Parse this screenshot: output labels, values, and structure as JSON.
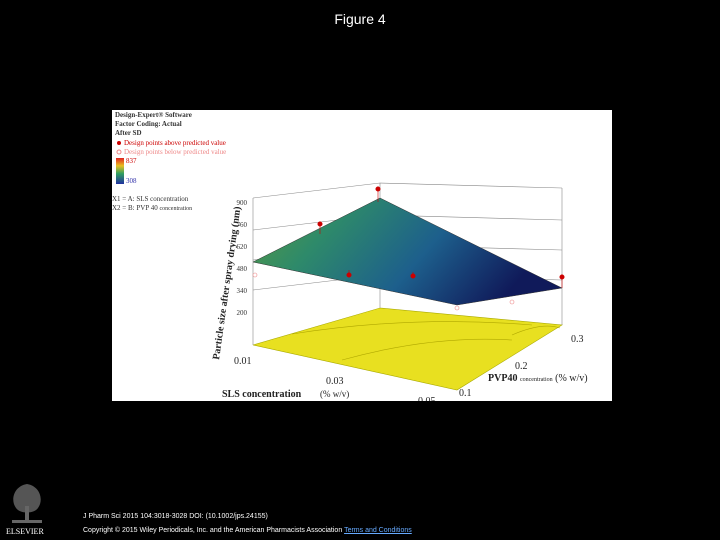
{
  "header": {
    "title": "Figure 4"
  },
  "figure": {
    "legend": {
      "software": "Design-Expert® Software",
      "coding": "Factor Coding: Actual",
      "response": "After SD",
      "above": "Design points above predicted value",
      "below": "Design points below predicted value",
      "max": "837",
      "min": "308",
      "x1": "X1 = A: SLS concentration",
      "x2_prefix": "X2 = B: PVP 40",
      "x2_suffix": "concentration"
    },
    "z_axis": {
      "label": "Particle size after spray drying (nm)",
      "ticks": [
        "900",
        "760",
        "620",
        "480",
        "340",
        "200"
      ]
    },
    "x_axis": {
      "label": "SLS concentration",
      "unit": "(% w/v)",
      "ticks": [
        "0.01",
        "0.03",
        "0.05"
      ]
    },
    "y_axis": {
      "label": "PVP40",
      "label_small": "concentration",
      "unit": "(% w/v)",
      "ticks": [
        "0.1",
        "0.2",
        "0.3"
      ]
    }
  },
  "footer": {
    "publisher": "ELSEVIER",
    "citation": "J Pharm Sci 2015 104:3018-3028 DOI: (10.1002/jps.24155)",
    "copyright": "Copyright © 2015 Wiley Periodicals, Inc. and the American Pharmacists Association",
    "link": "Terms and Conditions"
  }
}
